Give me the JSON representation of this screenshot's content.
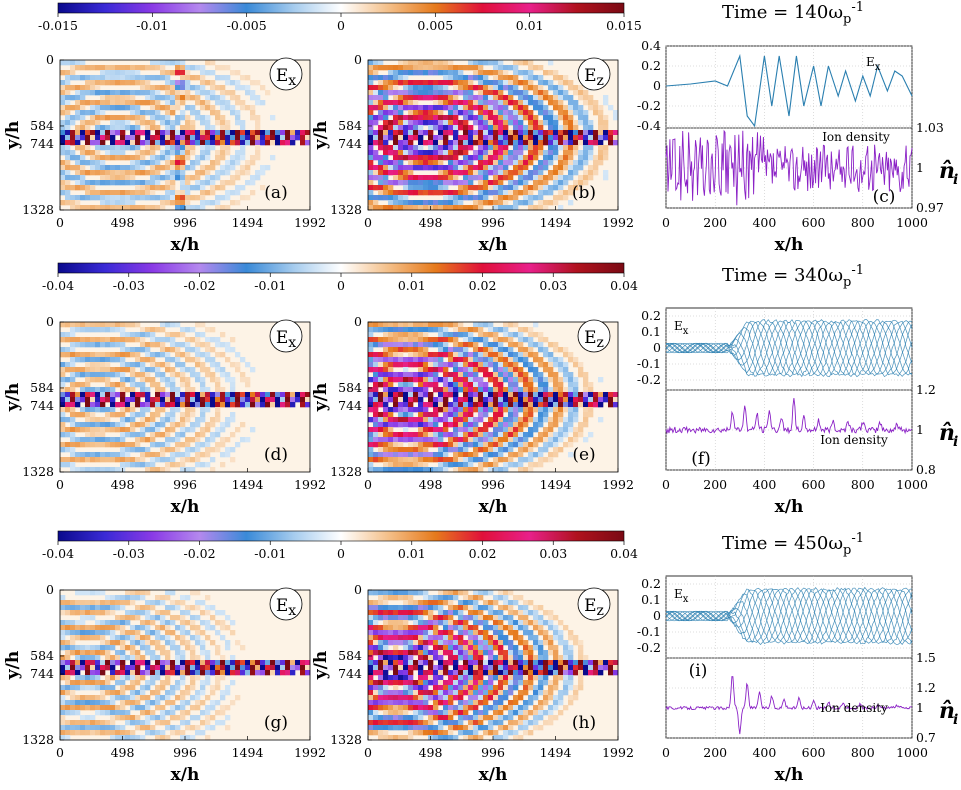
{
  "colors": {
    "diverging_scale": [
      "#0a0a8c",
      "#3a2ad6",
      "#8a3ae6",
      "#b488ee",
      "#3a8ad8",
      "#a6ccee",
      "#ffffff",
      "#f4c08a",
      "#e67a1c",
      "#e0103a",
      "#e8208a",
      "#b0121e",
      "#7a0a14"
    ],
    "ex_line": "#2a7fb0",
    "density_line": "#8b22c6",
    "frame": "#000000",
    "plot_bg": "#fdf3e6"
  },
  "labels": {
    "x_axis": "x/h",
    "y_axis": "y/h",
    "ex_tag_main": "E",
    "ex_tag_sub": "x",
    "ez_tag_main": "E",
    "ez_tag_sub": "z",
    "ion_density": "Ion density",
    "ex_line_main": "E",
    "ex_line_sub": "x",
    "nhat_symbol": "n̂",
    "nhat_sub": "i",
    "time_prefix": "Time = ",
    "omega_unit": "ω",
    "omega_sub": "p",
    "omega_sup": "-1"
  },
  "chart_data": [
    {
      "type": "heatmap",
      "row": 0,
      "title": "Time = 140ωp-1",
      "time_value": "140",
      "colorbar_ticks": [
        "-0.015",
        "-0.01",
        "-0.005",
        "0",
        "0.005",
        "0.01",
        "0.015"
      ],
      "colorbar_range": [
        -0.015,
        0.015
      ],
      "x_ticks": [
        "0",
        "498",
        "996",
        "1494",
        "1992"
      ],
      "x_range": [
        0,
        1992
      ],
      "y_ticks": [
        "0",
        "584",
        "744",
        "1328"
      ],
      "y_range": [
        0,
        1328
      ],
      "panels": [
        {
          "field": "Ex",
          "tag": "(a)"
        },
        {
          "field": "Ez",
          "tag": "(b)"
        }
      ]
    },
    {
      "type": "line",
      "row": 0,
      "tag": "(c)",
      "x_ticks": [
        "0",
        "200",
        "400",
        "600",
        "800",
        "1000"
      ],
      "xlim": [
        0,
        1000
      ],
      "ex_yticks": [
        "0.4",
        "0.2",
        "0",
        "-0.2",
        "-0.4"
      ],
      "ex_ylim": [
        -0.4,
        0.4
      ],
      "density_yticks": [
        "1.03",
        "1",
        "0.97"
      ],
      "density_ylim": [
        0.97,
        1.03
      ],
      "ex_series": [
        {
          "x": [
            0,
            100,
            200,
            250,
            300,
            330,
            360,
            400,
            430,
            460,
            500,
            530,
            560,
            600,
            630,
            660,
            700,
            730,
            770,
            800,
            830,
            860,
            900,
            930,
            960,
            1000
          ],
          "y": [
            0.0,
            0.02,
            0.05,
            0.0,
            0.3,
            -0.3,
            -0.4,
            0.3,
            -0.2,
            0.3,
            -0.3,
            0.3,
            -0.2,
            0.2,
            -0.2,
            0.2,
            -0.1,
            0.15,
            -0.15,
            0.1,
            -0.1,
            0.2,
            -0.05,
            0.15,
            0.1,
            -0.1
          ]
        }
      ],
      "density_series": [
        {
          "x": [
            0,
            1000
          ],
          "y": [
            1.0,
            1.0
          ],
          "noise_amplitude": 0.02
        }
      ]
    },
    {
      "type": "heatmap",
      "row": 1,
      "title": "Time = 340ωp-1",
      "time_value": "340",
      "colorbar_ticks": [
        "-0.04",
        "-0.03",
        "-0.02",
        "-0.01",
        "0",
        "0.01",
        "0.02",
        "0.03",
        "0.04"
      ],
      "colorbar_range": [
        -0.04,
        0.04
      ],
      "x_ticks": [
        "0",
        "498",
        "996",
        "1494",
        "1992"
      ],
      "x_range": [
        0,
        1992
      ],
      "y_ticks": [
        "0",
        "584",
        "744",
        "1328"
      ],
      "y_range": [
        0,
        1328
      ],
      "panels": [
        {
          "field": "Ex",
          "tag": "(d)"
        },
        {
          "field": "Ez",
          "tag": "(e)"
        }
      ]
    },
    {
      "type": "line",
      "row": 1,
      "tag": "(f)",
      "x_ticks": [
        "0",
        "200",
        "400",
        "600",
        "800",
        "1000"
      ],
      "xlim": [
        0,
        1000
      ],
      "ex_yticks": [
        "0.2",
        "0.1",
        "0",
        "-0.1",
        "-0.2"
      ],
      "ex_ylim": [
        -0.25,
        0.25
      ],
      "density_yticks": [
        "1.2",
        "1",
        "0.8"
      ],
      "density_ylim": [
        0.8,
        1.2
      ],
      "density_spikes_x": [
        270,
        320,
        370,
        420,
        470,
        520,
        560,
        620,
        680,
        740,
        800,
        870,
        940
      ],
      "density_spikes_y": [
        1.1,
        1.12,
        1.08,
        1.1,
        1.07,
        1.15,
        1.06,
        1.05,
        1.05,
        1.05,
        1.04,
        1.04,
        1.03
      ]
    },
    {
      "type": "heatmap",
      "row": 2,
      "title": "Time = 450ωp-1",
      "time_value": "450",
      "colorbar_ticks": [
        "-0.04",
        "-0.03",
        "-0.02",
        "-0.01",
        "0",
        "0.01",
        "0.02",
        "0.03",
        "0.04"
      ],
      "colorbar_range": [
        -0.04,
        0.04
      ],
      "x_ticks": [
        "0",
        "498",
        "996",
        "1494",
        "1992"
      ],
      "x_range": [
        0,
        1992
      ],
      "y_ticks": [
        "0",
        "584",
        "744",
        "1328"
      ],
      "y_range": [
        0,
        1328
      ],
      "panels": [
        {
          "field": "Ex",
          "tag": "(g)"
        },
        {
          "field": "Ez",
          "tag": "(h)"
        }
      ]
    },
    {
      "type": "line",
      "row": 2,
      "tag": "(i)",
      "x_ticks": [
        "0",
        "200",
        "400",
        "600",
        "800",
        "1000"
      ],
      "xlim": [
        0,
        1000
      ],
      "ex_yticks": [
        "0.2",
        "0.1",
        "0",
        "-0.1",
        "-0.2"
      ],
      "ex_ylim": [
        -0.25,
        0.25
      ],
      "density_yticks": [
        "1.5",
        "1.2",
        "1",
        "0.7"
      ],
      "density_ylim": [
        0.7,
        1.5
      ],
      "density_spikes_x": [
        270,
        300,
        330,
        380,
        430,
        480,
        540,
        600,
        660,
        720,
        790,
        860,
        940
      ],
      "density_spikes_y": [
        1.35,
        0.75,
        1.25,
        1.15,
        1.12,
        1.1,
        1.1,
        1.08,
        1.06,
        1.05,
        1.04,
        1.04,
        1.03
      ]
    }
  ]
}
